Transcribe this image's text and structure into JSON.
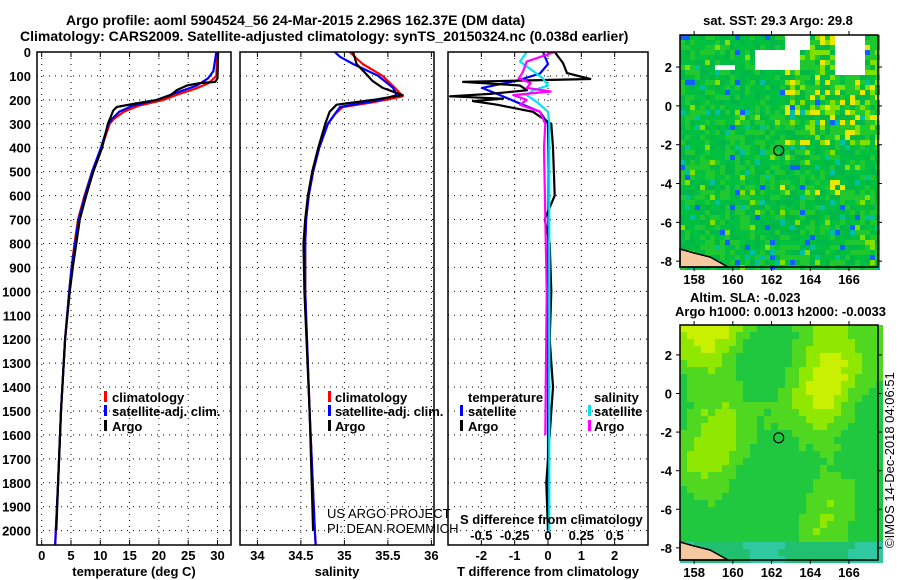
{
  "header": {
    "title_line1": "Argo profile: aoml 5904524_56 24-Mar-2015 2.296S 162.37E (DM data)",
    "title_line2": "Climatology: CARS2009. Satellite-adjusted climatology: synTS_20150324.nc (0.038d earlier)"
  },
  "colors": {
    "climatology": "#ff0000",
    "satellite": "#0000ff",
    "argo": "#000000",
    "sal_satellite": "#00e5ee",
    "sal_argo": "#ff00ff"
  },
  "chart_data": [
    {
      "type": "line",
      "xlabel": "temperature (deg C)",
      "ylabel": "depth",
      "xlim": [
        -0.8,
        32.3
      ],
      "ylim": [
        2060,
        0
      ],
      "xticks": [
        "0",
        "5",
        "10",
        "15",
        "20",
        "25",
        "30"
      ],
      "xtick_values": [
        0,
        5,
        10,
        15,
        20,
        25,
        30
      ],
      "yticks": [
        "0",
        "100",
        "200",
        "300",
        "400",
        "500",
        "600",
        "700",
        "800",
        "900",
        "1000",
        "1100",
        "1200",
        "1300",
        "1400",
        "1500",
        "1600",
        "1700",
        "1800",
        "1900",
        "2000"
      ],
      "legend": [
        "climatology",
        "satellite-adj. clim.",
        "Argo"
      ],
      "series": [
        {
          "name": "climatology",
          "color": "#ff0000",
          "depth": [
            0,
            100,
            130,
            150,
            175,
            200,
            225,
            250,
            280,
            300,
            400,
            500,
            600,
            700,
            800,
            900,
            1000,
            1200,
            1500,
            1800,
            2000,
            2060
          ],
          "values": [
            30.0,
            29.8,
            28.5,
            26.6,
            23.5,
            20.8,
            16.5,
            14.0,
            12.3,
            11.6,
            10.2,
            8.6,
            7.3,
            6.2,
            5.6,
            5.1,
            4.7,
            4.0,
            3.3,
            2.8,
            2.4,
            2.3
          ]
        },
        {
          "name": "satellite-adj. clim.",
          "color": "#0000ff",
          "depth": [
            0,
            80,
            110,
            140,
            170,
            200,
            225,
            250,
            280,
            300,
            400,
            500,
            600,
            700,
            800,
            900,
            1000,
            1200,
            1500,
            1800,
            2000,
            2060
          ],
          "values": [
            29.8,
            29.3,
            28.4,
            26.5,
            23.0,
            19.6,
            15.5,
            13.2,
            12.0,
            11.4,
            10.1,
            8.6,
            7.4,
            6.3,
            5.7,
            5.1,
            4.7,
            4.0,
            3.3,
            2.8,
            2.4,
            2.3
          ]
        },
        {
          "name": "Argo",
          "color": "#000000",
          "depth": [
            0,
            110,
            125,
            130,
            140,
            160,
            180,
            200,
            215,
            230,
            245,
            270,
            300,
            400,
            500,
            600,
            700,
            800,
            900,
            1000,
            1200,
            1500,
            1800,
            2000
          ],
          "values": [
            30.1,
            30.0,
            29.6,
            27.0,
            24.8,
            23.0,
            22.0,
            19.7,
            16.0,
            12.8,
            12.2,
            11.8,
            11.3,
            10.3,
            8.8,
            7.6,
            6.5,
            5.9,
            5.3,
            4.8,
            4.0,
            3.3,
            2.8,
            2.5
          ]
        }
      ]
    },
    {
      "type": "line",
      "xlabel": "salinity",
      "xlim": [
        33.8,
        36.03
      ],
      "ylim": [
        2060,
        0
      ],
      "xticks": [
        "34",
        "34.5",
        "35",
        "35.5",
        "36"
      ],
      "xtick_values": [
        34,
        34.5,
        35,
        35.5,
        36
      ],
      "legend": [
        "climatology",
        "satellite-adj. clim.",
        "Argo"
      ],
      "annotations": [
        "US ARGO PROJECT",
        "PI: DEAN ROEMMICH"
      ],
      "series": [
        {
          "name": "climatology",
          "color": "#ff0000",
          "depth": [
            0,
            50,
            100,
            150,
            185,
            210,
            230,
            260,
            300,
            400,
            500,
            600,
            700,
            800,
            1000,
            1500,
            2000,
            2060
          ],
          "values": [
            35.06,
            35.21,
            35.44,
            35.58,
            35.67,
            35.33,
            34.98,
            34.89,
            34.81,
            34.71,
            34.64,
            34.59,
            34.56,
            34.55,
            34.55,
            34.6,
            34.66,
            34.67
          ]
        },
        {
          "name": "satellite-adj. clim.",
          "color": "#0000ff",
          "depth": [
            0,
            20,
            50,
            100,
            150,
            180,
            200,
            230,
            260,
            300,
            400,
            500,
            600,
            700,
            800,
            1000,
            1500,
            2000,
            2060
          ],
          "values": [
            34.89,
            34.95,
            35.1,
            35.39,
            35.56,
            35.6,
            35.41,
            34.95,
            34.89,
            34.81,
            34.71,
            34.64,
            34.59,
            34.56,
            34.55,
            34.55,
            34.6,
            34.66,
            34.67
          ]
        },
        {
          "name": "Argo",
          "color": "#000000",
          "depth": [
            0,
            50,
            100,
            120,
            150,
            180,
            200,
            220,
            250,
            300,
            400,
            500,
            600,
            700,
            800,
            1000,
            1500,
            2000
          ],
          "values": [
            35.1,
            35.14,
            35.27,
            35.32,
            35.44,
            35.67,
            35.33,
            34.91,
            34.83,
            34.78,
            34.7,
            34.63,
            34.58,
            34.55,
            34.53,
            34.54,
            34.6,
            34.64
          ]
        }
      ]
    },
    {
      "type": "line",
      "xlabel": "T difference from climatology",
      "xlabel_secondary": "S difference from climatology",
      "xlim": [
        -3,
        3
      ],
      "ylim": [
        2060,
        0
      ],
      "xticks": [
        "-2",
        "-1",
        "0",
        "1",
        "2"
      ],
      "xtick_values": [
        -2,
        -1,
        0,
        1,
        2
      ],
      "s_xticks": [
        "-0.5",
        "-0.25",
        "0",
        "0.25",
        "0.5"
      ],
      "s_xtick_values": [
        -0.5,
        -0.25,
        0,
        0.25,
        0.5
      ],
      "legend_temperature": {
        "heading": "temperature",
        "items": [
          "satellite",
          "Argo"
        ]
      },
      "legend_salinity": {
        "heading": "salinity",
        "items": [
          "satellite",
          "Argo"
        ]
      },
      "series": [
        {
          "name": "T satellite",
          "color": "#0000ff",
          "units": "T",
          "depth": [
            0,
            50,
            90,
            120,
            150,
            180,
            210,
            250,
            300,
            500,
            1000,
            1500,
            2000
          ],
          "values": [
            -0.15,
            0,
            -0.24,
            -0.93,
            -1.98,
            -1.44,
            -0.93,
            -0.24,
            0,
            0.02,
            0.0,
            0.0,
            0.0
          ]
        },
        {
          "name": "T Argo",
          "color": "#000000",
          "units": "T",
          "depth": [
            0,
            46,
            88,
            113,
            125,
            140,
            160,
            175,
            185,
            195,
            205,
            220,
            250,
            270,
            300,
            400,
            600,
            700,
            800,
            1000,
            1200,
            1400,
            1600,
            1800,
            2000
          ],
          "values": [
            0.2,
            0.45,
            0.57,
            1.27,
            -2.55,
            -0.84,
            -0.63,
            -1.74,
            -2.94,
            -1.35,
            -2.25,
            -1.53,
            -0.45,
            -0.24,
            0.1,
            0.15,
            0.2,
            -0.1,
            0.05,
            0.1,
            0.05,
            0.15,
            0.05,
            -0.05,
            0.0
          ]
        },
        {
          "name": "S satellite",
          "color": "#00e5ee",
          "units": "S",
          "depth": [
            0,
            40,
            80,
            110,
            140,
            160,
            180,
            210,
            250,
            300,
            600,
            1000,
            1500,
            2000
          ],
          "values": [
            -0.16,
            -0.21,
            -0.11,
            -0.04,
            0,
            -0.11,
            -0.16,
            -0.08,
            0,
            0.01,
            0.01,
            0.01,
            0.01,
            0.01
          ]
        },
        {
          "name": "S Argo",
          "color": "#ff00ff",
          "units": "S",
          "depth": [
            0,
            40,
            85,
            110,
            130,
            150,
            165,
            180,
            200,
            220,
            250,
            300,
            400,
            1000,
            1600
          ],
          "values": [
            0.05,
            -0.16,
            -0.19,
            -0.22,
            -0.13,
            -0.16,
            0.02,
            -0.26,
            -0.16,
            -0.21,
            -0.06,
            -0.02,
            -0.03,
            -0.01,
            -0.02
          ]
        }
      ]
    },
    {
      "type": "heatmap",
      "title": "sat. SST: 29.3 Argo: 29.8",
      "xlim": [
        157.27,
        167.5
      ],
      "ylim": [
        -8.3,
        3.65
      ],
      "xticks": [
        "158",
        "160",
        "162",
        "164",
        "166"
      ],
      "xtick_values": [
        158,
        160,
        162,
        164,
        166
      ],
      "yticks": [
        "2",
        "0",
        "-2",
        "-4",
        "-6",
        "-8"
      ],
      "ytick_values": [
        2,
        0,
        -2,
        -4,
        -6,
        -8
      ],
      "marker": {
        "lon": 162.37,
        "lat": -2.296
      }
    },
    {
      "type": "heatmap",
      "title": "Altim. SLA: -0.023",
      "subtitle": "Argo h1000: 0.0013 h2000: -0.0033",
      "xlim": [
        157.27,
        167.5
      ],
      "ylim": [
        -8.63,
        3.55
      ],
      "xticks": [
        "158",
        "160",
        "162",
        "164",
        "166"
      ],
      "xtick_values": [
        158,
        160,
        162,
        164,
        166
      ],
      "yticks": [
        "2",
        "0",
        "-2",
        "-4",
        "-6",
        "-8"
      ],
      "ytick_values": [
        2,
        0,
        -2,
        -4,
        -6,
        -8
      ],
      "marker": {
        "lon": 162.37,
        "lat": -2.296
      }
    }
  ],
  "footer": {
    "credit": "©IMOS 14-Dec-2018 04:06:51"
  }
}
